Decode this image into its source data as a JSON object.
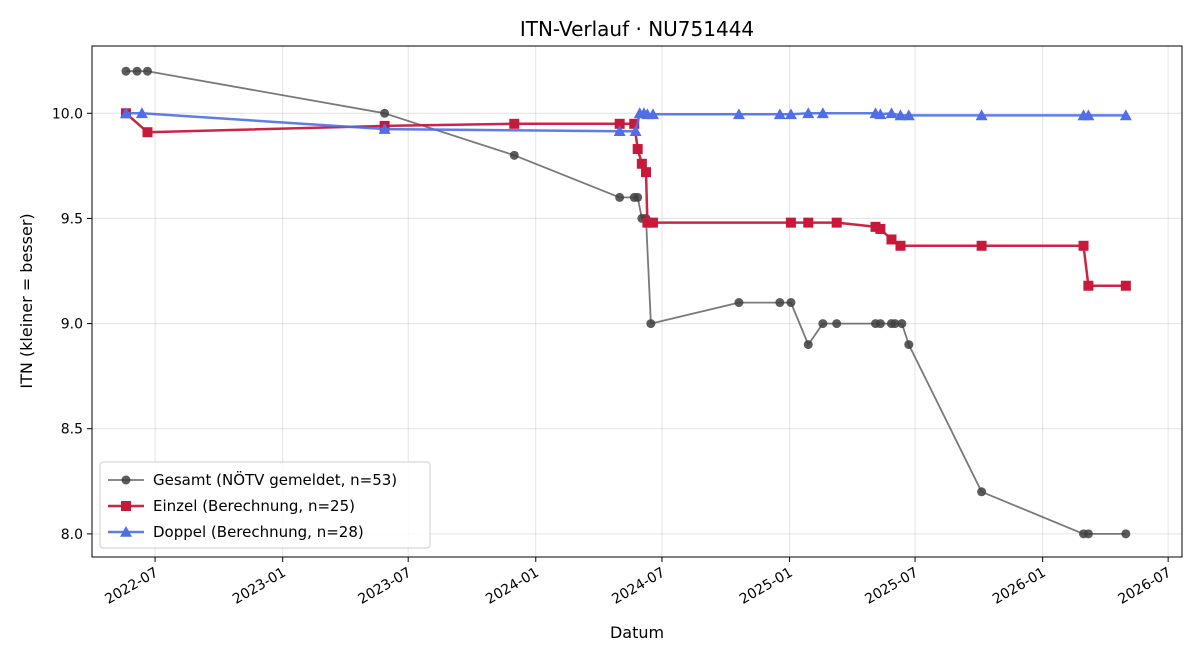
{
  "chart_data": {
    "type": "line",
    "title": "ITN-Verlauf · NU751444",
    "xlabel": "Datum",
    "ylabel": "ITN  (kleiner = besser)",
    "x_type": "date",
    "xlim": [
      "2022-04-01",
      "2026-07-21"
    ],
    "ylim": [
      7.89,
      10.32
    ],
    "x_ticks": [
      "2022-07-01",
      "2023-01-01",
      "2023-07-01",
      "2024-01-01",
      "2024-07-01",
      "2025-01-01",
      "2025-07-01",
      "2026-01-01",
      "2026-07-01"
    ],
    "x_tick_labels": [
      "2022-07",
      "2023-01",
      "2023-07",
      "2024-01",
      "2024-07",
      "2025-01",
      "2025-07",
      "2026-01",
      "2026-07"
    ],
    "y_ticks": [
      8.0,
      8.5,
      9.0,
      9.5,
      10.0
    ],
    "y_tick_labels": [
      "8.0",
      "8.5",
      "9.0",
      "9.5",
      "10.0"
    ],
    "grid": true,
    "legend_position": "lower-left",
    "series": [
      {
        "name": "Gesamt (NÖTV gemeldet, n=53)",
        "color": "#404040",
        "marker": "circle",
        "points": [
          [
            "2022-05-20",
            10.2
          ],
          [
            "2022-06-05",
            10.2
          ],
          [
            "2022-06-20",
            10.2
          ],
          [
            "2023-05-28",
            10.0
          ],
          [
            "2023-12-01",
            9.8
          ],
          [
            "2024-05-01",
            9.6
          ],
          [
            "2024-05-22",
            9.6
          ],
          [
            "2024-05-27",
            9.6
          ],
          [
            "2024-06-02",
            9.5
          ],
          [
            "2024-06-08",
            9.5
          ],
          [
            "2024-06-15",
            9.0
          ],
          [
            "2024-10-20",
            9.1
          ],
          [
            "2024-12-18",
            9.1
          ],
          [
            "2025-01-03",
            9.1
          ],
          [
            "2025-01-28",
            8.9
          ],
          [
            "2025-02-18",
            9.0
          ],
          [
            "2025-03-10",
            9.0
          ],
          [
            "2025-05-05",
            9.0
          ],
          [
            "2025-05-12",
            9.0
          ],
          [
            "2025-05-28",
            9.0
          ],
          [
            "2025-06-02",
            9.0
          ],
          [
            "2025-06-12",
            9.0
          ],
          [
            "2025-06-22",
            8.9
          ],
          [
            "2025-10-05",
            8.2
          ],
          [
            "2026-03-01",
            8.0
          ],
          [
            "2026-03-08",
            8.0
          ],
          [
            "2026-05-01",
            8.0
          ]
        ]
      },
      {
        "name": "Einzel (Berechnung, n=25)",
        "color": "#c8193b",
        "marker": "square",
        "points": [
          [
            "2022-05-20",
            10.0
          ],
          [
            "2022-06-20",
            9.91
          ],
          [
            "2023-05-28",
            9.94
          ],
          [
            "2023-12-01",
            9.95
          ],
          [
            "2024-05-01",
            9.95
          ],
          [
            "2024-05-22",
            9.95
          ],
          [
            "2024-05-27",
            9.83
          ],
          [
            "2024-06-02",
            9.76
          ],
          [
            "2024-06-08",
            9.72
          ],
          [
            "2024-06-10",
            9.48
          ],
          [
            "2024-06-18",
            9.48
          ],
          [
            "2025-01-03",
            9.48
          ],
          [
            "2025-01-28",
            9.48
          ],
          [
            "2025-03-10",
            9.48
          ],
          [
            "2025-05-05",
            9.46
          ],
          [
            "2025-05-12",
            9.45
          ],
          [
            "2025-05-28",
            9.4
          ],
          [
            "2025-06-10",
            9.37
          ],
          [
            "2025-10-05",
            9.37
          ],
          [
            "2026-03-01",
            9.37
          ],
          [
            "2026-03-08",
            9.18
          ],
          [
            "2026-05-01",
            9.18
          ]
        ]
      },
      {
        "name": "Doppel (Berechnung, n=28)",
        "color": "#4f6ee8",
        "marker": "triangle",
        "points": [
          [
            "2022-05-20",
            10.0
          ],
          [
            "2022-06-12",
            10.0
          ],
          [
            "2023-05-28",
            9.925
          ],
          [
            "2024-05-01",
            9.915
          ],
          [
            "2024-05-24",
            9.915
          ],
          [
            "2024-05-30",
            10.0
          ],
          [
            "2024-06-05",
            10.0
          ],
          [
            "2024-06-10",
            9.995
          ],
          [
            "2024-06-18",
            9.995
          ],
          [
            "2024-10-20",
            9.995
          ],
          [
            "2024-12-18",
            9.995
          ],
          [
            "2025-01-03",
            9.995
          ],
          [
            "2025-01-28",
            10.0
          ],
          [
            "2025-02-18",
            10.0
          ],
          [
            "2025-05-05",
            10.0
          ],
          [
            "2025-05-12",
            9.995
          ],
          [
            "2025-05-28",
            10.0
          ],
          [
            "2025-06-10",
            9.99
          ],
          [
            "2025-06-22",
            9.99
          ],
          [
            "2025-10-05",
            9.99
          ],
          [
            "2026-03-01",
            9.99
          ],
          [
            "2026-03-08",
            9.99
          ],
          [
            "2026-05-01",
            9.99
          ]
        ]
      }
    ]
  }
}
